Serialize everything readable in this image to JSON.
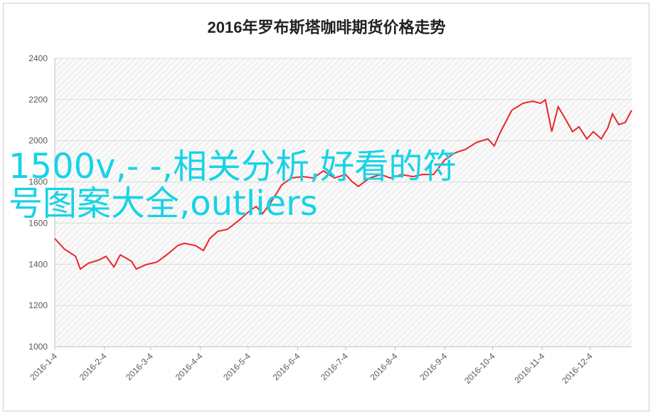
{
  "chart_data": {
    "type": "line",
    "title": "2016年罗布斯塔咖啡期货价格走势",
    "annotation": "1500v,- -,相关分析,好看的符号图案大全,outliers",
    "x": [
      "2016-1-4",
      "2016-1-10",
      "2016-1-17",
      "2016-1-20",
      "2016-1-25",
      "2016-2-1",
      "2016-2-5",
      "2016-2-10",
      "2016-2-14",
      "2016-2-21",
      "2016-2-24",
      "2016-3-1",
      "2016-3-8",
      "2016-3-14",
      "2016-3-21",
      "2016-3-25",
      "2016-4-1",
      "2016-4-6",
      "2016-4-10",
      "2016-4-15",
      "2016-4-21",
      "2016-4-28",
      "2016-5-4",
      "2016-5-9",
      "2016-5-13",
      "2016-5-18",
      "2016-5-25",
      "2016-5-31",
      "2016-6-7",
      "2016-6-14",
      "2016-6-20",
      "2016-6-27",
      "2016-7-4",
      "2016-7-8",
      "2016-7-12",
      "2016-7-19",
      "2016-7-26",
      "2016-8-1",
      "2016-8-8",
      "2016-8-15",
      "2016-8-21",
      "2016-8-28",
      "2016-9-4",
      "2016-9-10",
      "2016-9-17",
      "2016-9-24",
      "2016-10-1",
      "2016-10-5",
      "2016-10-9",
      "2016-10-16",
      "2016-10-23",
      "2016-10-29",
      "2016-11-3",
      "2016-11-6",
      "2016-11-10",
      "2016-11-14",
      "2016-11-18",
      "2016-11-23",
      "2016-11-27",
      "2016-12-2",
      "2016-12-6",
      "2016-12-11",
      "2016-12-15",
      "2016-12-18",
      "2016-12-22",
      "2016-12-26",
      "2016-12-30"
    ],
    "series": [
      {
        "color": "#e8262b",
        "values": [
          1525,
          1474,
          1439,
          1377,
          1405,
          1422,
          1439,
          1387,
          1446,
          1415,
          1377,
          1398,
          1411,
          1446,
          1491,
          1502,
          1491,
          1467,
          1525,
          1560,
          1570,
          1612,
          1653,
          1681,
          1646,
          1698,
          1785,
          1819,
          1826,
          1819,
          1854,
          1819,
          1836,
          1802,
          1778,
          1819,
          1836,
          1819,
          1836,
          1826,
          1836,
          1836,
          1906,
          1940,
          1958,
          1992,
          2009,
          1975,
          2044,
          2148,
          2182,
          2192,
          2182,
          2199,
          2044,
          2165,
          2113,
          2044,
          2068,
          2009,
          2044,
          2009,
          2061,
          2130,
          2078,
          2089,
          2148
        ]
      }
    ],
    "xlim": [
      "2016-1-4",
      "2016-12-30"
    ],
    "xticks": [
      "2016-1-4",
      "2016-2-4",
      "2016-3-4",
      "2016-4-4",
      "2016-5-4",
      "2016-6-4",
      "2016-7-4",
      "2016-8-4",
      "2016-9-4",
      "2016-10-4",
      "2016-11-4",
      "2016-12-4"
    ],
    "ylim": [
      1000,
      2400
    ],
    "yticks": [
      1000,
      1200,
      1400,
      1600,
      1800,
      2000,
      2200,
      2400
    ],
    "grid": true
  }
}
